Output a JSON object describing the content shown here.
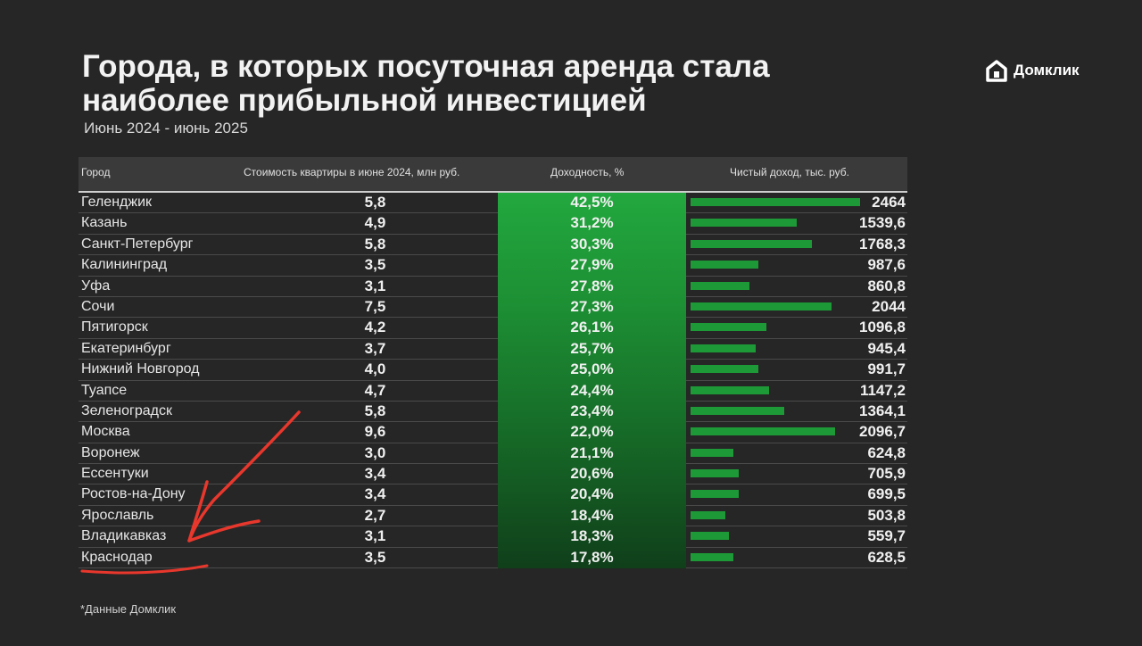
{
  "title": "Города, в которых посуточная аренда стала наиболее прибыльной инвестицией",
  "subtitle": "Июнь 2024 - июнь 2025",
  "brand": "Домклик",
  "footnote": "*Данные Домклик",
  "colors": {
    "background": "#262626",
    "accent_green": "#1d9a37"
  },
  "table": {
    "columns": {
      "city": "Город",
      "price": "Стоимость квартиры в июне 2024, млн руб.",
      "yield": "Доходность, %",
      "income": "Чистый доход, тыс. руб."
    },
    "rows": [
      {
        "city": "Геленджик",
        "price": "5,8",
        "yield": "42,5%",
        "income": "2464",
        "income_value": 2464
      },
      {
        "city": "Казань",
        "price": "4,9",
        "yield": "31,2%",
        "income": "1539,6",
        "income_value": 1539.6
      },
      {
        "city": "Санкт-Петербург",
        "price": "5,8",
        "yield": "30,3%",
        "income": "1768,3",
        "income_value": 1768.3
      },
      {
        "city": "Калининград",
        "price": "3,5",
        "yield": "27,9%",
        "income": "987,6",
        "income_value": 987.6
      },
      {
        "city": "Уфа",
        "price": "3,1",
        "yield": "27,8%",
        "income": "860,8",
        "income_value": 860.8
      },
      {
        "city": "Сочи",
        "price": "7,5",
        "yield": "27,3%",
        "income": "2044",
        "income_value": 2044
      },
      {
        "city": "Пятигорск",
        "price": "4,2",
        "yield": "26,1%",
        "income": "1096,8",
        "income_value": 1096.8
      },
      {
        "city": "Екатеринбург",
        "price": "3,7",
        "yield": "25,7%",
        "income": "945,4",
        "income_value": 945.4
      },
      {
        "city": "Нижний Новгород",
        "price": "4,0",
        "yield": "25,0%",
        "income": "991,7",
        "income_value": 991.7
      },
      {
        "city": "Туапсе",
        "price": "4,7",
        "yield": "24,4%",
        "income": "1147,2",
        "income_value": 1147.2
      },
      {
        "city": "Зеленоградск",
        "price": "5,8",
        "yield": "23,4%",
        "income": "1364,1",
        "income_value": 1364.1
      },
      {
        "city": "Москва",
        "price": "9,6",
        "yield": "22,0%",
        "income": "2096,7",
        "income_value": 2096.7
      },
      {
        "city": "Воронеж",
        "price": "3,0",
        "yield": "21,1%",
        "income": "624,8",
        "income_value": 624.8
      },
      {
        "city": "Ессентуки",
        "price": "3,4",
        "yield": "20,6%",
        "income": "705,9",
        "income_value": 705.9
      },
      {
        "city": "Ростов-на-Дону",
        "price": "3,4",
        "yield": "20,4%",
        "income": "699,5",
        "income_value": 699.5
      },
      {
        "city": "Ярославль",
        "price": "2,7",
        "yield": "18,4%",
        "income": "503,8",
        "income_value": 503.8
      },
      {
        "city": "Владикавказ",
        "price": "3,1",
        "yield": "18,3%",
        "income": "559,7",
        "income_value": 559.7
      },
      {
        "city": "Краснодар",
        "price": "3,5",
        "yield": "17,8%",
        "income": "628,5",
        "income_value": 628.5
      }
    ]
  }
}
